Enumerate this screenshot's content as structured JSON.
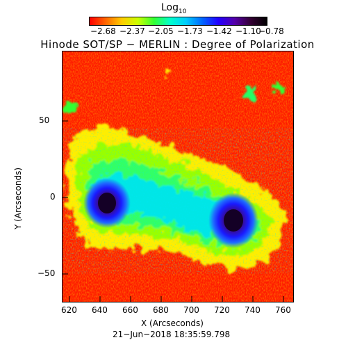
{
  "colorbar": {
    "title": "Log",
    "title_sub": "10",
    "ticks": [
      "−2.68",
      "−2.37",
      "−2.05",
      "−1.73",
      "−1.42",
      "−1.10",
      "−0.78"
    ],
    "colors": [
      "#ff0000",
      "#ff6600",
      "#ffcc00",
      "#ccff00",
      "#33ff33",
      "#00ffcc",
      "#00ccff",
      "#0066ff",
      "#2200ff",
      "#5500aa",
      "#330033",
      "#000000"
    ]
  },
  "title": "Hinode SOT/SP − MERLIN : Degree of Polarization",
  "axes": {
    "xlabel": "X (Arcseconds)",
    "ylabel": "Y (Arcseconds)",
    "xticks": [
      "620",
      "640",
      "660",
      "680",
      "700",
      "720",
      "740",
      "760"
    ],
    "yticks": [
      "50",
      "0",
      "−50"
    ]
  },
  "timestamp": "21−Jun−2018 18:35:59.798",
  "features": [
    "sunspot-umbra",
    "sunspot-umbra",
    "plage-region"
  ]
}
